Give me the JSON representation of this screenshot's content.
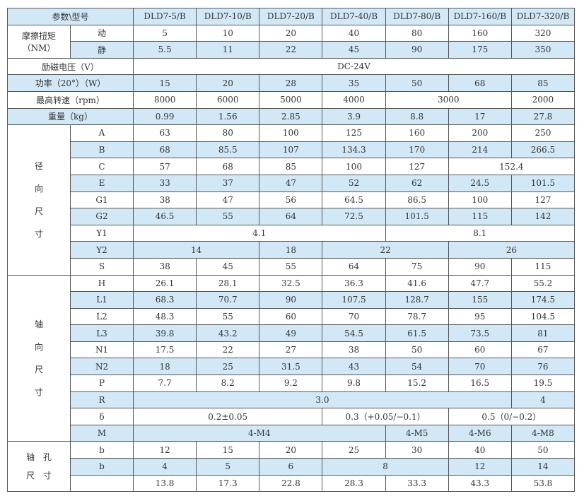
{
  "header": {
    "label": "参数\\型号",
    "models": [
      "DLD7-5/B",
      "DLD7-10/B",
      "DLD7-20/B",
      "DLD7-40/B",
      "DLD7-80/B",
      "DLD7-160/B",
      "DLD7-320/B"
    ]
  },
  "torque": {
    "label": "摩擦扭矩",
    "unit": "（NM）",
    "rows": [
      {
        "sub": "动",
        "blue": false,
        "cells": [
          {
            "v": "5"
          },
          {
            "v": "10"
          },
          {
            "v": "20"
          },
          {
            "v": "40"
          },
          {
            "v": "80"
          },
          {
            "v": "160"
          },
          {
            "v": "320"
          }
        ]
      },
      {
        "sub": "静",
        "blue": true,
        "cells": [
          {
            "v": "5.5"
          },
          {
            "v": "11"
          },
          {
            "v": "22"
          },
          {
            "v": "45"
          },
          {
            "v": "90"
          },
          {
            "v": "175"
          },
          {
            "v": "350"
          }
        ]
      }
    ]
  },
  "simple_rows": [
    {
      "label": "励磁电压（V）",
      "blue": false,
      "cells": [
        {
          "v": "DC-24V",
          "s": 7
        }
      ]
    },
    {
      "label": "功率（20°）（W）",
      "blue": true,
      "cells": [
        {
          "v": "15"
        },
        {
          "v": "20"
        },
        {
          "v": "28"
        },
        {
          "v": "35"
        },
        {
          "v": "50"
        },
        {
          "v": "68"
        },
        {
          "v": "85"
        }
      ]
    },
    {
      "label": "最高转速（rpm）",
      "blue": false,
      "cells": [
        {
          "v": "8000"
        },
        {
          "v": "6000"
        },
        {
          "v": "5000"
        },
        {
          "v": "4000"
        },
        {
          "v": "3000",
          "s": 2
        },
        {
          "v": "2000"
        }
      ]
    },
    {
      "label": "重量（kg）",
      "blue": true,
      "cells": [
        {
          "v": "0.99"
        },
        {
          "v": "1.56"
        },
        {
          "v": "2.85"
        },
        {
          "v": "3.9"
        },
        {
          "v": "8.8"
        },
        {
          "v": "17"
        },
        {
          "v": "27.8"
        }
      ]
    }
  ],
  "sections": [
    {
      "label": "径\n向\n尺\n寸",
      "rows": [
        {
          "sub": "A",
          "blue": false,
          "cells": [
            {
              "v": "63"
            },
            {
              "v": "80"
            },
            {
              "v": "100"
            },
            {
              "v": "125"
            },
            {
              "v": "160"
            },
            {
              "v": "200"
            },
            {
              "v": "250"
            }
          ]
        },
        {
          "sub": "B",
          "blue": true,
          "cells": [
            {
              "v": "68"
            },
            {
              "v": "85.5"
            },
            {
              "v": "107"
            },
            {
              "v": "134.3"
            },
            {
              "v": "170"
            },
            {
              "v": "214"
            },
            {
              "v": "266.5"
            }
          ]
        },
        {
          "sub": "C",
          "blue": false,
          "cells": [
            {
              "v": "57"
            },
            {
              "v": "68"
            },
            {
              "v": "85"
            },
            {
              "v": "100"
            },
            {
              "v": "127"
            },
            {
              "v": "152.4",
              "s": 2
            }
          ]
        },
        {
          "sub": "E",
          "blue": true,
          "cells": [
            {
              "v": "33"
            },
            {
              "v": "37"
            },
            {
              "v": "47"
            },
            {
              "v": "52"
            },
            {
              "v": "62"
            },
            {
              "v": "24.5"
            },
            {
              "v": "101.5"
            }
          ]
        },
        {
          "sub": "G1",
          "blue": false,
          "cells": [
            {
              "v": "38"
            },
            {
              "v": "47"
            },
            {
              "v": "56"
            },
            {
              "v": "64.5"
            },
            {
              "v": "86.5"
            },
            {
              "v": "100"
            },
            {
              "v": "127"
            }
          ]
        },
        {
          "sub": "G2",
          "blue": true,
          "cells": [
            {
              "v": "46.5"
            },
            {
              "v": "55"
            },
            {
              "v": "64"
            },
            {
              "v": "72.5"
            },
            {
              "v": "101.5"
            },
            {
              "v": "115"
            },
            {
              "v": "142"
            }
          ]
        },
        {
          "sub": "Y1",
          "blue": false,
          "cells": [
            {
              "v": "4.1",
              "s": 4
            },
            {
              "v": "8.1",
              "s": 3
            }
          ]
        },
        {
          "sub": "Y2",
          "blue": true,
          "cells": [
            {
              "v": "14",
              "s": 2
            },
            {
              "v": "18"
            },
            {
              "v": "22",
              "s": 2
            },
            {
              "v": "26",
              "s": 2
            }
          ]
        },
        {
          "sub": "S",
          "blue": false,
          "cells": [
            {
              "v": "38"
            },
            {
              "v": "45"
            },
            {
              "v": "55"
            },
            {
              "v": "64"
            },
            {
              "v": "75"
            },
            {
              "v": "90"
            },
            {
              "v": "115"
            }
          ]
        }
      ]
    },
    {
      "label": "轴\n向\n尺\n寸",
      "rows": [
        {
          "sub": "H",
          "blue": false,
          "cells": [
            {
              "v": "26.1"
            },
            {
              "v": "28.1"
            },
            {
              "v": "32.5"
            },
            {
              "v": "36.3"
            },
            {
              "v": "41.6"
            },
            {
              "v": "47.7"
            },
            {
              "v": "55.2"
            }
          ]
        },
        {
          "sub": "L1",
          "blue": true,
          "cells": [
            {
              "v": "68.3"
            },
            {
              "v": "70.7"
            },
            {
              "v": "90"
            },
            {
              "v": "107.5"
            },
            {
              "v": "128.7"
            },
            {
              "v": "155"
            },
            {
              "v": "174.5"
            }
          ]
        },
        {
          "sub": "L2",
          "blue": false,
          "cells": [
            {
              "v": "48.3"
            },
            {
              "v": "55"
            },
            {
              "v": "60"
            },
            {
              "v": "70"
            },
            {
              "v": "78.7"
            },
            {
              "v": "95"
            },
            {
              "v": "104.5"
            }
          ]
        },
        {
          "sub": "L3",
          "blue": true,
          "cells": [
            {
              "v": "39.8"
            },
            {
              "v": "43.2"
            },
            {
              "v": "49"
            },
            {
              "v": "54.5"
            },
            {
              "v": "61.5"
            },
            {
              "v": "73.5"
            },
            {
              "v": "81"
            }
          ]
        },
        {
          "sub": "N1",
          "blue": false,
          "cells": [
            {
              "v": "17.5"
            },
            {
              "v": "22"
            },
            {
              "v": "27"
            },
            {
              "v": "38"
            },
            {
              "v": "50"
            },
            {
              "v": "60"
            },
            {
              "v": "67"
            }
          ]
        },
        {
          "sub": "N2",
          "blue": true,
          "cells": [
            {
              "v": "18"
            },
            {
              "v": "25"
            },
            {
              "v": "31.5"
            },
            {
              "v": "43"
            },
            {
              "v": "54"
            },
            {
              "v": "70"
            },
            {
              "v": "76"
            }
          ]
        },
        {
          "sub": "P",
          "blue": false,
          "cells": [
            {
              "v": "7.7"
            },
            {
              "v": "8.2"
            },
            {
              "v": "9.2"
            },
            {
              "v": "9.8"
            },
            {
              "v": "15.2"
            },
            {
              "v": "16.5"
            },
            {
              "v": "19.5"
            }
          ]
        },
        {
          "sub": "R",
          "blue": true,
          "cells": [
            {
              "v": "3.0",
              "s": 6
            },
            {
              "v": "4"
            }
          ]
        },
        {
          "sub": "δ",
          "blue": false,
          "cells": [
            {
              "v": "0.2±0.05",
              "s": 3
            },
            {
              "v": "0.3（+0.05/−0.1）",
              "s": 2
            },
            {
              "v": "0.5（0/−0.2）",
              "s": 2
            }
          ]
        },
        {
          "sub": "M",
          "blue": true,
          "cells": [
            {
              "v": "4-M4",
              "s": 4
            },
            {
              "v": "4-M5"
            },
            {
              "v": "4-M6"
            },
            {
              "v": "4-M8"
            }
          ]
        }
      ]
    },
    {
      "label": "轴　孔\n尺　寸",
      "rows": [
        {
          "sub": "b",
          "blue": false,
          "cells": [
            {
              "v": "12"
            },
            {
              "v": "15"
            },
            {
              "v": "20"
            },
            {
              "v": "25"
            },
            {
              "v": "30"
            },
            {
              "v": "40"
            },
            {
              "v": "50"
            }
          ]
        },
        {
          "sub": "b",
          "blue": true,
          "cells": [
            {
              "v": "4"
            },
            {
              "v": "5"
            },
            {
              "v": "6"
            },
            {
              "v": "8",
              "s": 2
            },
            {
              "v": "12"
            },
            {
              "v": "14"
            }
          ]
        },
        {
          "sub": "",
          "blue": false,
          "cells": [
            {
              "v": "13.8"
            },
            {
              "v": "17.3"
            },
            {
              "v": "22.8"
            },
            {
              "v": "28.3"
            },
            {
              "v": "33.3"
            },
            {
              "v": "43.3"
            },
            {
              "v": "53.8"
            }
          ]
        }
      ]
    }
  ]
}
